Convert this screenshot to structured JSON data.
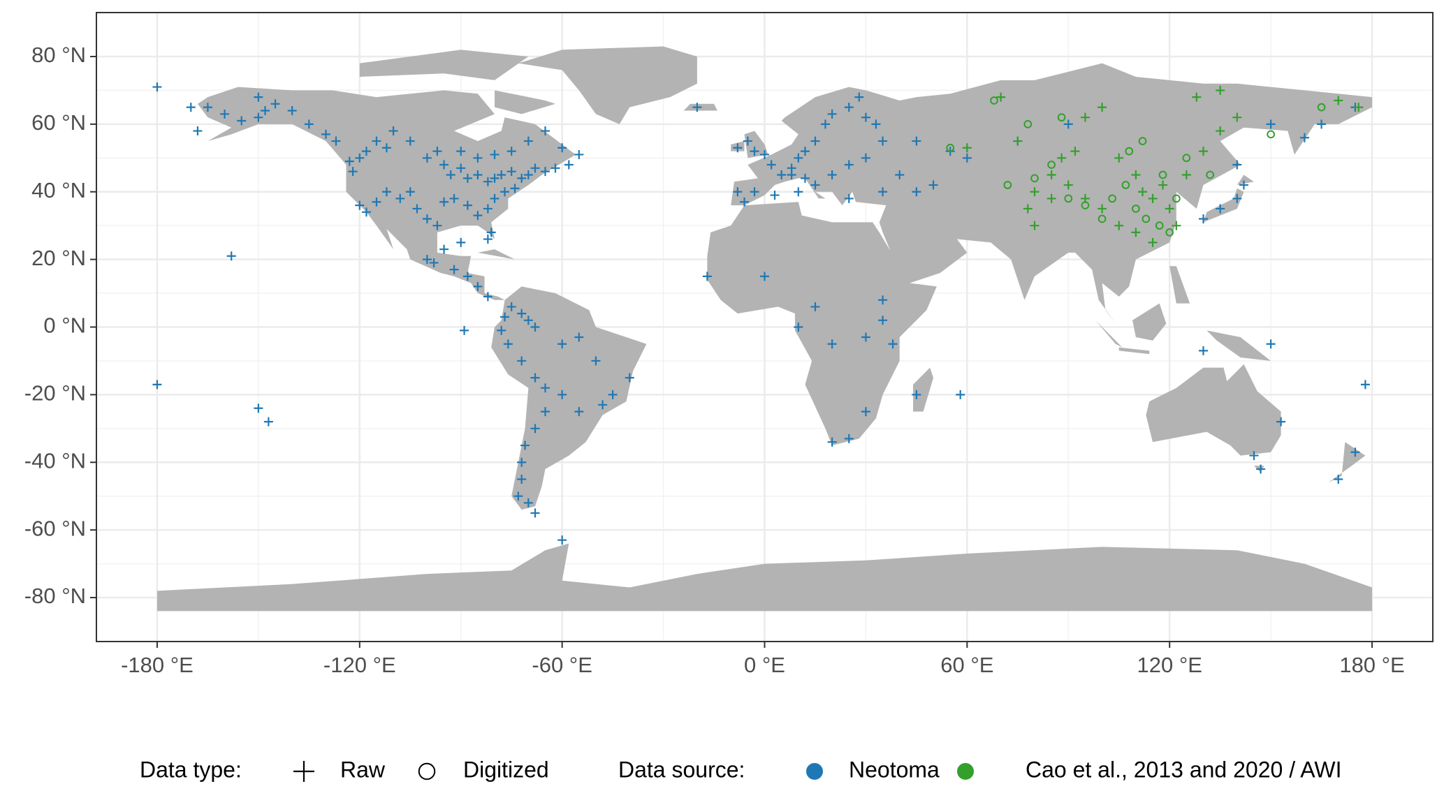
{
  "chart_data": {
    "type": "scatter",
    "xlim": [
      -198,
      198
    ],
    "ylim": [
      -93,
      93
    ],
    "xticks": [
      {
        "value": -180,
        "label": "-180 °E"
      },
      {
        "value": -120,
        "label": "-120 °E"
      },
      {
        "value": -60,
        "label": "-60 °E"
      },
      {
        "value": 0,
        "label": "0 °E"
      },
      {
        "value": 60,
        "label": "60 °E"
      },
      {
        "value": 120,
        "label": "120 °E"
      },
      {
        "value": 180,
        "label": "180 °E"
      }
    ],
    "yticks": [
      {
        "value": -80,
        "label": "-80 °N"
      },
      {
        "value": -60,
        "label": "-60 °N"
      },
      {
        "value": -40,
        "label": "-40 °N"
      },
      {
        "value": -20,
        "label": "-20 °N"
      },
      {
        "value": 0,
        "label": "0 °N"
      },
      {
        "value": 20,
        "label": "20 °N"
      },
      {
        "value": 40,
        "label": "40 °N"
      },
      {
        "value": 60,
        "label": "60 °N"
      },
      {
        "value": 80,
        "label": "80 °N"
      }
    ],
    "grid": true,
    "legend": {
      "type_title": "Data type:",
      "types": [
        {
          "label": "Raw",
          "marker": "plus"
        },
        {
          "label": "Digitized",
          "marker": "circle"
        }
      ],
      "source_title": "Data source:",
      "sources": [
        {
          "label": "Neotoma",
          "color": "#1f78b4"
        },
        {
          "label": "Cao et al., 2013 and 2020 / AWI",
          "color": "#33a02c"
        }
      ]
    },
    "series": [
      {
        "source": 0,
        "type": 0,
        "x": [
          -165,
          -160,
          -155,
          -150,
          -148,
          -145,
          -150,
          -140,
          -135,
          -130,
          -127,
          -180,
          -180,
          -170,
          -168,
          -158,
          -150,
          -147,
          -123,
          -122,
          -120,
          -118,
          -115,
          -112,
          -110,
          -105,
          -100,
          -97,
          -95,
          -93,
          -90,
          -88,
          -85,
          -82,
          -80,
          -78,
          -75,
          -72,
          -70,
          -68,
          -65,
          -62,
          -58,
          -55,
          -60,
          -65,
          -70,
          -75,
          -80,
          -85,
          -90,
          -120,
          -118,
          -115,
          -112,
          -108,
          -105,
          -103,
          -100,
          -97,
          -95,
          -92,
          -88,
          -85,
          -82,
          -80,
          -77,
          -74,
          -81,
          -82,
          -90,
          -95,
          -100,
          -98,
          -92,
          -88,
          -85,
          -82,
          -77,
          -75,
          -72,
          -70,
          -68,
          -78,
          -76,
          -72,
          -68,
          -65,
          -60,
          -55,
          -48,
          -45,
          -40,
          -50,
          -55,
          -60,
          -65,
          -68,
          -71,
          -72,
          -72,
          -73,
          -70,
          -68,
          -89,
          -60,
          -8,
          -5,
          -3,
          0,
          2,
          5,
          8,
          10,
          12,
          15,
          18,
          20,
          25,
          28,
          30,
          33,
          35,
          30,
          25,
          20,
          15,
          12,
          8,
          -3,
          -8,
          -6,
          3,
          10,
          25,
          35,
          40,
          45,
          50,
          -17,
          -20,
          0,
          10,
          15,
          20,
          30,
          35,
          38,
          30,
          25,
          20,
          45,
          58,
          35,
          60,
          55,
          75,
          90,
          130,
          135,
          140,
          142,
          140,
          150,
          160,
          165,
          175,
          145,
          147,
          153,
          175,
          170,
          178,
          150,
          130,
          45
        ],
        "y": [
          65,
          63,
          61,
          62,
          64,
          66,
          68,
          64,
          60,
          57,
          55,
          71,
          -17,
          65,
          58,
          21,
          -24,
          -28,
          49,
          46,
          50,
          52,
          55,
          53,
          58,
          55,
          50,
          52,
          48,
          45,
          47,
          44,
          45,
          43,
          44,
          45,
          46,
          44,
          45,
          47,
          46,
          47,
          48,
          51,
          53,
          58,
          55,
          52,
          51,
          50,
          52,
          36,
          34,
          37,
          40,
          38,
          40,
          35,
          32,
          30,
          37,
          38,
          36,
          33,
          35,
          38,
          40,
          41,
          28,
          26,
          25,
          23,
          20,
          19,
          17,
          15,
          12,
          9,
          3,
          6,
          4,
          2,
          0,
          -1,
          -5,
          -10,
          -15,
          -18,
          -20,
          -25,
          -23,
          -20,
          -15,
          -10,
          -3,
          -5,
          -25,
          -30,
          -35,
          -40,
          -45,
          -50,
          -52,
          -55,
          -1,
          -63,
          53,
          55,
          52,
          51,
          48,
          45,
          47,
          50,
          52,
          55,
          60,
          63,
          65,
          68,
          62,
          60,
          55,
          50,
          48,
          45,
          42,
          44,
          45,
          40,
          40,
          37,
          39,
          40,
          38,
          40,
          45,
          40,
          42,
          15,
          65,
          15,
          0,
          6,
          -5,
          -3,
          2,
          -5,
          -25,
          -33,
          -34,
          -20,
          -20,
          8,
          50,
          52,
          55,
          60,
          32,
          35,
          38,
          42,
          48,
          60,
          56,
          60,
          65,
          -38,
          -42,
          -28,
          -37,
          -45,
          -17,
          -5,
          -7,
          55
        ]
      },
      {
        "source": 1,
        "type": 0,
        "x": [
          60,
          70,
          75,
          80,
          85,
          88,
          92,
          95,
          100,
          105,
          110,
          112,
          115,
          118,
          120,
          122,
          115,
          110,
          105,
          100,
          95,
          90,
          85,
          78,
          80,
          125,
          130,
          135,
          128,
          135,
          140,
          170,
          176
        ],
        "y": [
          53,
          68,
          55,
          40,
          45,
          50,
          52,
          62,
          65,
          50,
          45,
          40,
          38,
          42,
          35,
          30,
          25,
          28,
          30,
          35,
          38,
          42,
          38,
          35,
          30,
          45,
          52,
          58,
          68,
          70,
          62,
          67,
          65
        ]
      },
      {
        "source": 1,
        "type": 1,
        "x": [
          72,
          80,
          85,
          90,
          95,
          100,
          103,
          107,
          110,
          113,
          117,
          120,
          108,
          112,
          118,
          122,
          125,
          132,
          150,
          165,
          88,
          78,
          68,
          55
        ],
        "y": [
          42,
          44,
          48,
          38,
          36,
          32,
          38,
          42,
          35,
          32,
          30,
          28,
          52,
          55,
          45,
          38,
          50,
          45,
          57,
          65,
          62,
          60,
          67,
          53
        ]
      }
    ]
  }
}
